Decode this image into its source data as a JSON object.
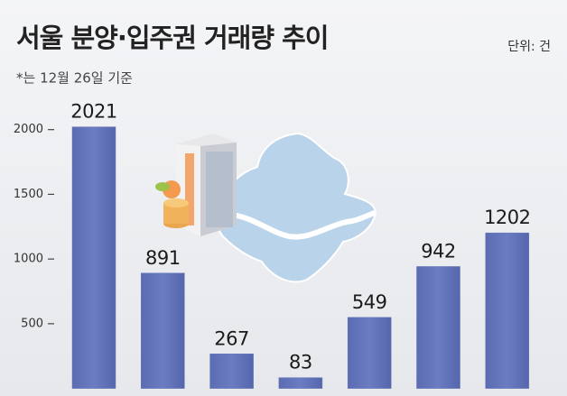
{
  "chart_data": {
    "type": "bar",
    "title": "서울 분양·입주권 거래량 추이",
    "subtitle": "*는 12월 26일 기준",
    "unit": "단위: 건",
    "categories": [
      null,
      null,
      null,
      null,
      null,
      null,
      null
    ],
    "values": [
      2021,
      891,
      267,
      83,
      549,
      942,
      1202
    ],
    "color": "#6374b8",
    "ylim": [
      0,
      2200
    ],
    "yticks": [
      500,
      1000,
      1500,
      2000
    ]
  }
}
